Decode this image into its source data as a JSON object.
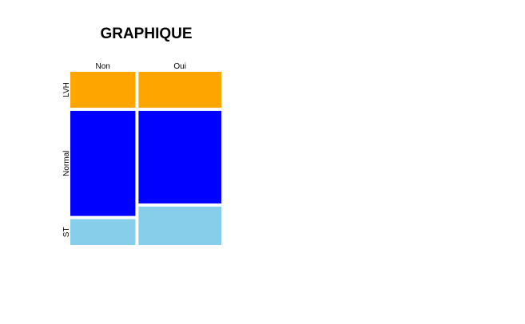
{
  "chart_data": {
    "type": "mosaic",
    "title": "GRAPHIQUE",
    "x_categories": [
      "Non",
      "Oui"
    ],
    "y_categories": [
      "LVH",
      "Normal",
      "ST"
    ],
    "colors": {
      "LVH": "#FFA500",
      "Normal": "#0000FF",
      "ST": "#87CEEB"
    },
    "column_proportions": {
      "Non": 0.44,
      "Oui": 0.56
    },
    "cell_proportions": {
      "Non": {
        "LVH": 0.215,
        "Normal": 0.63,
        "ST": 0.155
      },
      "Oui": {
        "LVH": 0.215,
        "Normal": 0.555,
        "ST": 0.23
      }
    }
  }
}
